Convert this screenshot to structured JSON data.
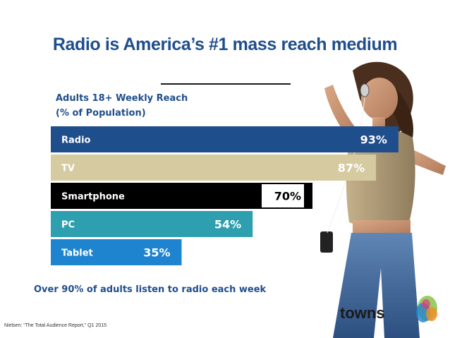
{
  "title": "Radio is America’s #1 mass reach medium",
  "subtitle_line1": "Adults 18+ Weekly Reach",
  "subtitle_line2": "(% of Population)",
  "footnote": "Over 90% of adults listen to radio each week",
  "source": "Nielsen: “The Total Audience Report,” Q1 2015",
  "logo_text": "towns",
  "chart_data": {
    "type": "bar",
    "orientation": "horizontal",
    "categories": [
      "Radio",
      "TV",
      "Smartphone",
      "PC",
      "Tablet"
    ],
    "values": [
      93,
      87,
      70,
      54,
      35
    ],
    "value_labels": [
      "93%",
      "87%",
      "70%",
      "54%",
      "35%"
    ],
    "xlim": [
      0,
      100
    ],
    "grid": false,
    "bar_colors": [
      "#1f4e8c",
      "#d6caa0",
      "#000000",
      "#2e9fae",
      "#1e84d0"
    ],
    "label_colors": [
      "#ffffff",
      "#ffffff",
      "#ffffff",
      "#ffffff",
      "#ffffff"
    ],
    "value_colors": [
      "#ffffff",
      "#ffffff",
      "#000000",
      "#ffffff",
      "#ffffff"
    ],
    "value_bg": [
      null,
      null,
      "#ffffff",
      null,
      null
    ]
  },
  "colors": {
    "title": "#1f4e8c",
    "accent": "#1f4e8c"
  }
}
